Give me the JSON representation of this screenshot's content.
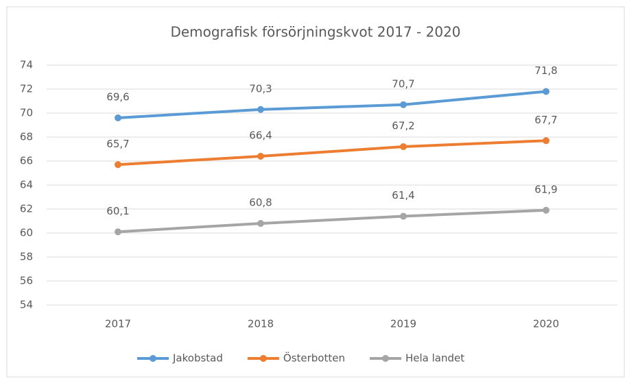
{
  "chart_data": {
    "type": "line",
    "title": "Demografisk försörjningskvot 2017 - 2020",
    "categories": [
      "2017",
      "2018",
      "2019",
      "2020"
    ],
    "series": [
      {
        "name": "Jakobstad",
        "color": "#5b9bd5",
        "values": [
          69.6,
          70.3,
          70.7,
          71.8
        ],
        "value_labels": [
          "69,6",
          "70,3",
          "70,7",
          "71,8"
        ]
      },
      {
        "name": "Österbotten",
        "color": "#ed7d31",
        "values": [
          65.7,
          66.4,
          67.2,
          67.7
        ],
        "value_labels": [
          "65,7",
          "66,4",
          "67,2",
          "67,7"
        ]
      },
      {
        "name": "Hela landet",
        "color": "#a5a5a5",
        "values": [
          60.1,
          60.8,
          61.4,
          61.9
        ],
        "value_labels": [
          "60,1",
          "60,8",
          "61,4",
          "61,9"
        ]
      }
    ],
    "ylim": [
      54,
      74
    ],
    "yticks": [
      54,
      56,
      58,
      60,
      62,
      64,
      66,
      68,
      70,
      72,
      74
    ],
    "grid": true,
    "legend": "bottom"
  }
}
